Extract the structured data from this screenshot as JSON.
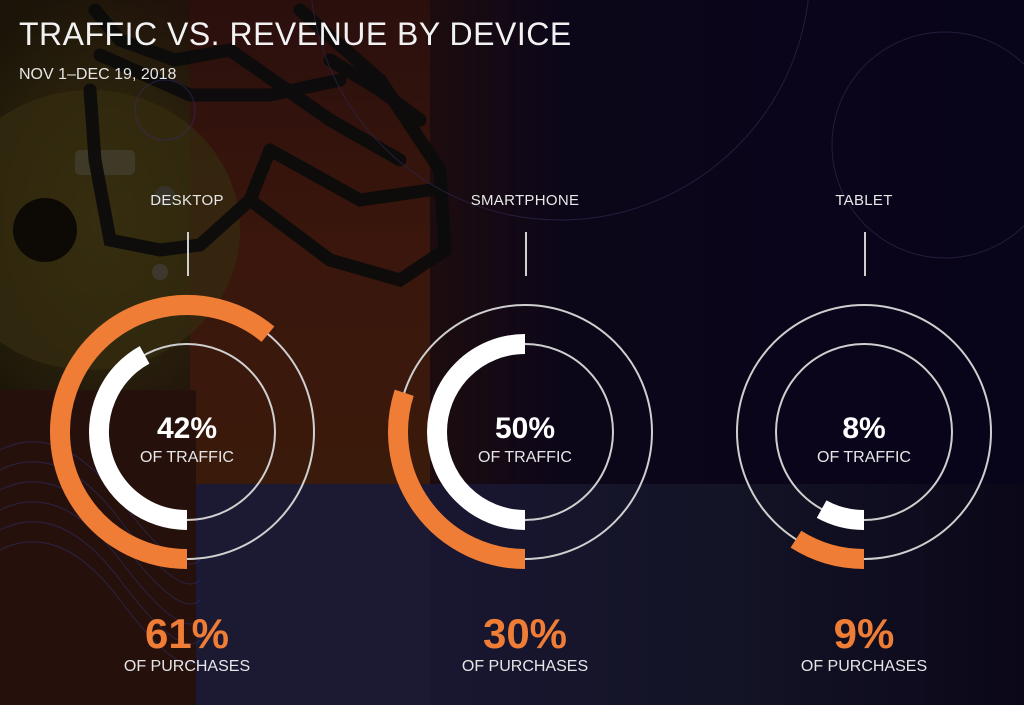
{
  "header": {
    "title": "TRAFFIC VS. REVENUE BY DEVICE",
    "subtitle": "NOV 1–DEC 19, 2018"
  },
  "colors": {
    "accent_orange": "#ef7d35",
    "traffic_white": "#ffffff",
    "track_gray": "#cfcfcf"
  },
  "devices": [
    {
      "name": "DESKTOP",
      "traffic_value": "42%",
      "traffic_label": "OF TRAFFIC",
      "purchases_value": "61%",
      "purchases_label": "OF PURCHASES"
    },
    {
      "name": "SMARTPHONE",
      "traffic_value": "50%",
      "traffic_label": "OF TRAFFIC",
      "purchases_value": "30%",
      "purchases_label": "OF PURCHASES"
    },
    {
      "name": "TABLET",
      "traffic_value": "8%",
      "traffic_label": "OF TRAFFIC",
      "purchases_value": "9%",
      "purchases_label": "OF PURCHASES"
    }
  ],
  "chart_data": {
    "type": "pie",
    "subtype": "radial-progress-rings",
    "title": "TRAFFIC VS. REVENUE BY DEVICE",
    "subtitle": "NOV 1–DEC 19, 2018",
    "categories": [
      "DESKTOP",
      "SMARTPHONE",
      "TABLET"
    ],
    "series": [
      {
        "name": "OF TRAFFIC",
        "ring": "inner",
        "color": "#ffffff",
        "values": [
          42,
          50,
          8
        ]
      },
      {
        "name": "OF PURCHASES",
        "ring": "outer",
        "color": "#ef7d35",
        "values": [
          61,
          30,
          9
        ]
      }
    ],
    "units": "%",
    "arc_start": "bottom (6 o'clock), sweeping clockwise",
    "legend": "none (labels inline)"
  }
}
